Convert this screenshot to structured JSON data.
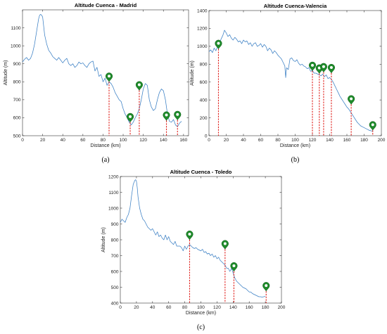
{
  "chart_data": [
    {
      "type": "line",
      "title": "Altitude Cuenca - Madrid",
      "xlabel": "Distance (km)",
      "ylabel": "Altitude (m)",
      "panel_label": "(a)",
      "xlim": [
        0,
        165
      ],
      "ylim": [
        500,
        1200
      ],
      "xticks": [
        0,
        20,
        40,
        60,
        80,
        100,
        120,
        140,
        160
      ],
      "yticks": [
        500,
        600,
        700,
        800,
        900,
        1000,
        1100
      ],
      "grid": false,
      "series": [
        {
          "x": [
            0,
            2,
            4,
            6,
            8,
            10,
            12,
            14,
            16,
            17,
            18,
            19,
            20,
            21,
            22,
            24,
            26,
            28,
            30,
            32,
            34,
            36,
            38,
            40,
            42,
            44,
            46,
            48,
            50,
            52,
            54,
            56,
            58,
            60,
            62,
            64,
            66,
            68,
            70,
            72,
            74,
            76,
            78,
            80,
            82,
            84,
            86,
            88,
            90,
            92,
            94,
            96,
            98,
            100,
            102,
            104,
            106,
            108,
            110,
            112,
            114,
            116,
            118,
            120,
            122,
            124,
            126,
            128,
            130,
            132,
            134,
            136,
            138,
            140,
            142,
            144,
            146,
            148,
            150,
            152,
            154,
            156,
            158
          ],
          "y": [
            910,
            925,
            935,
            920,
            930,
            960,
            1010,
            1080,
            1150,
            1170,
            1175,
            1170,
            1160,
            1110,
            1060,
            1010,
            975,
            960,
            940,
            930,
            920,
            935,
            920,
            905,
            920,
            930,
            900,
            890,
            900,
            880,
            890,
            910,
            900,
            905,
            890,
            880,
            900,
            910,
            915,
            860,
            880,
            830,
            840,
            800,
            820,
            780,
            800,
            790,
            770,
            740,
            720,
            700,
            690,
            650,
            620,
            600,
            575,
            560,
            575,
            600,
            620,
            650,
            700,
            760,
            790,
            780,
            700,
            660,
            640,
            650,
            700,
            740,
            760,
            750,
            700,
            620,
            580,
            575,
            590,
            560,
            550,
            570,
            580
          ]
        }
      ],
      "stations": [
        {
          "x": 86,
          "y": 800
        },
        {
          "x": 107,
          "y": 575
        },
        {
          "x": 116,
          "y": 752
        },
        {
          "x": 143,
          "y": 584
        },
        {
          "x": 154,
          "y": 587
        }
      ]
    },
    {
      "type": "line",
      "title": "Altitude Cuenca-Valencia",
      "xlabel": "Distance (km)",
      "ylabel": "Altitude (m)",
      "panel_label": "(b)",
      "xlim": [
        0,
        200
      ],
      "ylim": [
        0,
        1400
      ],
      "xticks": [
        0,
        20,
        40,
        60,
        80,
        100,
        120,
        140,
        160,
        180,
        200
      ],
      "yticks": [
        0,
        200,
        400,
        600,
        800,
        1000,
        1200,
        1400
      ],
      "grid": false,
      "series": [
        {
          "x": [
            0,
            2,
            4,
            6,
            8,
            10,
            12,
            14,
            16,
            18,
            20,
            22,
            24,
            26,
            28,
            30,
            32,
            34,
            36,
            38,
            40,
            42,
            44,
            46,
            48,
            50,
            52,
            54,
            56,
            58,
            60,
            62,
            64,
            66,
            68,
            70,
            72,
            74,
            76,
            78,
            80,
            82,
            84,
            86,
            88,
            89,
            90,
            92,
            94,
            96,
            98,
            100,
            102,
            104,
            106,
            108,
            110,
            112,
            114,
            116,
            118,
            120,
            122,
            124,
            126,
            128,
            130,
            132,
            134,
            136,
            138,
            140,
            142,
            144,
            146,
            148,
            150,
            152,
            154,
            156,
            158,
            160,
            162,
            164,
            166,
            168,
            170,
            172,
            174,
            176,
            178,
            180,
            182,
            184,
            186,
            188,
            190
          ],
          "y": [
            940,
            960,
            930,
            980,
            950,
            1000,
            1030,
            1080,
            1120,
            1180,
            1150,
            1110,
            1130,
            1090,
            1070,
            1100,
            1080,
            1050,
            1060,
            1030,
            1070,
            1050,
            1060,
            1020,
            1040,
            1000,
            1030,
            1040,
            1000,
            1010,
            1030,
            990,
            1020,
            1000,
            950,
            980,
            960,
            920,
            950,
            930,
            900,
            880,
            860,
            820,
            780,
            650,
            760,
            740,
            860,
            870,
            840,
            830,
            850,
            810,
            790,
            800,
            780,
            770,
            750,
            760,
            720,
            730,
            700,
            700,
            690,
            680,
            670,
            690,
            660,
            680,
            640,
            650,
            630,
            600,
            560,
            520,
            480,
            440,
            410,
            380,
            350,
            320,
            300,
            270,
            240,
            210,
            180,
            150,
            130,
            110,
            100,
            90,
            80,
            70,
            60,
            55,
            50
          ]
        }
      ],
      "stations": [
        {
          "x": 11,
          "y": 970
        },
        {
          "x": 120,
          "y": 725
        },
        {
          "x": 128,
          "y": 695
        },
        {
          "x": 133,
          "y": 710
        },
        {
          "x": 142,
          "y": 700
        },
        {
          "x": 165,
          "y": 350
        },
        {
          "x": 190,
          "y": 60
        }
      ]
    },
    {
      "type": "line",
      "title": "Altitude Cuenca - Toledo",
      "xlabel": "Distance (km)",
      "ylabel": "Altitude (m)",
      "panel_label": "(c)",
      "xlim": [
        0,
        200
      ],
      "ylim": [
        400,
        1200
      ],
      "xticks": [
        0,
        20,
        40,
        60,
        80,
        100,
        120,
        140,
        160,
        180,
        200
      ],
      "yticks": [
        400,
        500,
        600,
        700,
        800,
        900,
        1000,
        1100,
        1200
      ],
      "grid": false,
      "series": [
        {
          "x": [
            0,
            2,
            4,
            6,
            8,
            10,
            12,
            14,
            16,
            18,
            19,
            20,
            21,
            22,
            24,
            26,
            28,
            30,
            32,
            34,
            36,
            38,
            40,
            42,
            44,
            46,
            48,
            50,
            52,
            54,
            56,
            58,
            60,
            62,
            64,
            66,
            68,
            70,
            72,
            74,
            76,
            78,
            80,
            82,
            84,
            86,
            88,
            90,
            92,
            94,
            96,
            98,
            100,
            102,
            104,
            106,
            108,
            110,
            112,
            114,
            116,
            118,
            120,
            122,
            124,
            126,
            128,
            130,
            132,
            134,
            136,
            138,
            140,
            142,
            144,
            146,
            148,
            150,
            152,
            154,
            156,
            158,
            160,
            162,
            164,
            166,
            168,
            170,
            172,
            174,
            176,
            178,
            180
          ],
          "y": [
            910,
            930,
            920,
            910,
            940,
            960,
            1000,
            1080,
            1150,
            1175,
            1180,
            1170,
            1130,
            1070,
            1000,
            960,
            930,
            920,
            900,
            880,
            870,
            860,
            870,
            850,
            830,
            850,
            820,
            830,
            810,
            800,
            830,
            800,
            820,
            790,
            780,
            770,
            790,
            760,
            760,
            760,
            750,
            730,
            760,
            740,
            760,
            770,
            760,
            750,
            745,
            750,
            740,
            735,
            730,
            740,
            720,
            725,
            710,
            715,
            700,
            710,
            690,
            700,
            680,
            690,
            670,
            660,
            650,
            640,
            620,
            620,
            600,
            620,
            590,
            560,
            540,
            530,
            520,
            510,
            500,
            495,
            490,
            480,
            470,
            470,
            460,
            455,
            450,
            445,
            440,
            440,
            438,
            440,
            442
          ]
        }
      ],
      "stations": [
        {
          "x": 86,
          "y": 800
        },
        {
          "x": 130,
          "y": 740
        },
        {
          "x": 141,
          "y": 600
        },
        {
          "x": 181,
          "y": 475
        }
      ]
    }
  ]
}
